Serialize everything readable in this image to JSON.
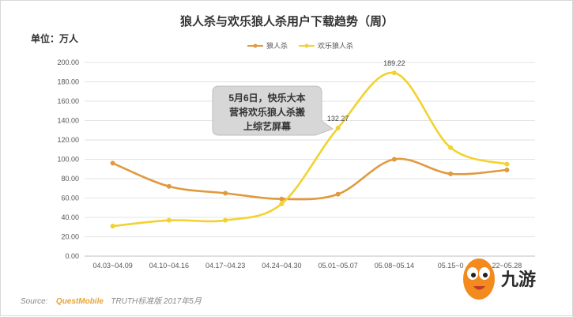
{
  "chart_data": {
    "type": "line",
    "title": "狼人杀与欢乐狼人杀用户下载趋势（周）",
    "ylabel": "单位：万人",
    "categories": [
      "04.03~04.09",
      "04.10~04.16",
      "04.17~04.23",
      "04.24~04.30",
      "05.01~05.07",
      "05.08~05.14",
      "05.15~05.21",
      "05.22~05.28"
    ],
    "category_labels": [
      "04.03~04.09",
      "04.10~04.16",
      "04.17~04.23",
      "04.24~04.30",
      "05.01~05.07",
      "05.08~05.14",
      "05.15~0",
      "22~05.28"
    ],
    "ylim": [
      0,
      200
    ],
    "yticks": [
      "0.00",
      "20.00",
      "40.00",
      "60.00",
      "80.00",
      "100.00",
      "120.00",
      "140.00",
      "160.00",
      "180.00",
      "200.00"
    ],
    "grid": true,
    "legend_position": "top",
    "series": [
      {
        "name": "狼人杀",
        "color": "#e09a3e",
        "values": [
          96,
          72,
          65,
          59,
          64,
          100,
          85,
          89
        ]
      },
      {
        "name": "欢乐狼人杀",
        "color": "#f2d230",
        "values": [
          31,
          37,
          37,
          54,
          132.27,
          189.22,
          112,
          95
        ]
      }
    ],
    "data_labels": [
      {
        "series": 1,
        "index": 4,
        "text": "132.27"
      },
      {
        "series": 1,
        "index": 5,
        "text": "189.22"
      }
    ],
    "annotation": {
      "lines": [
        "5月6日，快乐大本",
        "营将欢乐狼人杀搬",
        "上综艺屏幕"
      ]
    },
    "source": {
      "prefix": "Source:",
      "brand": "QuestMobile",
      "rest": "TRUTH标准版 2017年5月"
    }
  },
  "watermark": {
    "text": "九游"
  }
}
